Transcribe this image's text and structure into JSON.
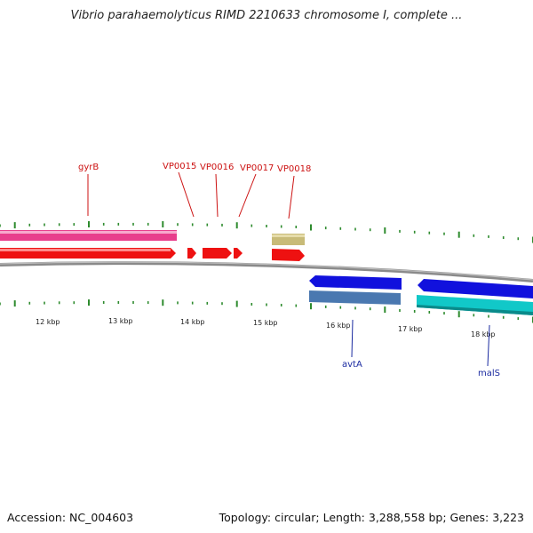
{
  "title": "Vibrio parahaemolyticus RIMD 2210633 chromosome I, complete ...",
  "footer": {
    "accession": "Accession: NC_004603",
    "summary": "Topology: circular; Length: 3,288,558 bp; Genes: 3,223"
  },
  "colors": {
    "backbone": "#7a7a7a",
    "tick": "#2e8b2e",
    "forward_label": "#cc1111",
    "reverse_label": "#1a2aa0",
    "pink_feature": "#e83e8c",
    "red_feature": "#ee1111",
    "khaki_feature": "#c8bb78",
    "blue_feature": "#1111dd",
    "steel_feature": "#4a78b0",
    "cyan_feature": "#11c8c8"
  },
  "scale": {
    "tick_labels": [
      "12 kbp",
      "13 kbp",
      "14 kbp",
      "15 kbp",
      "16 kbp",
      "17 kbp",
      "18 kbp"
    ]
  },
  "genes": {
    "forward_labels": [
      "gyrB",
      "VP0015",
      "VP0016",
      "VP0017",
      "VP0018"
    ],
    "reverse_labels": [
      "avtA",
      "malS"
    ]
  }
}
